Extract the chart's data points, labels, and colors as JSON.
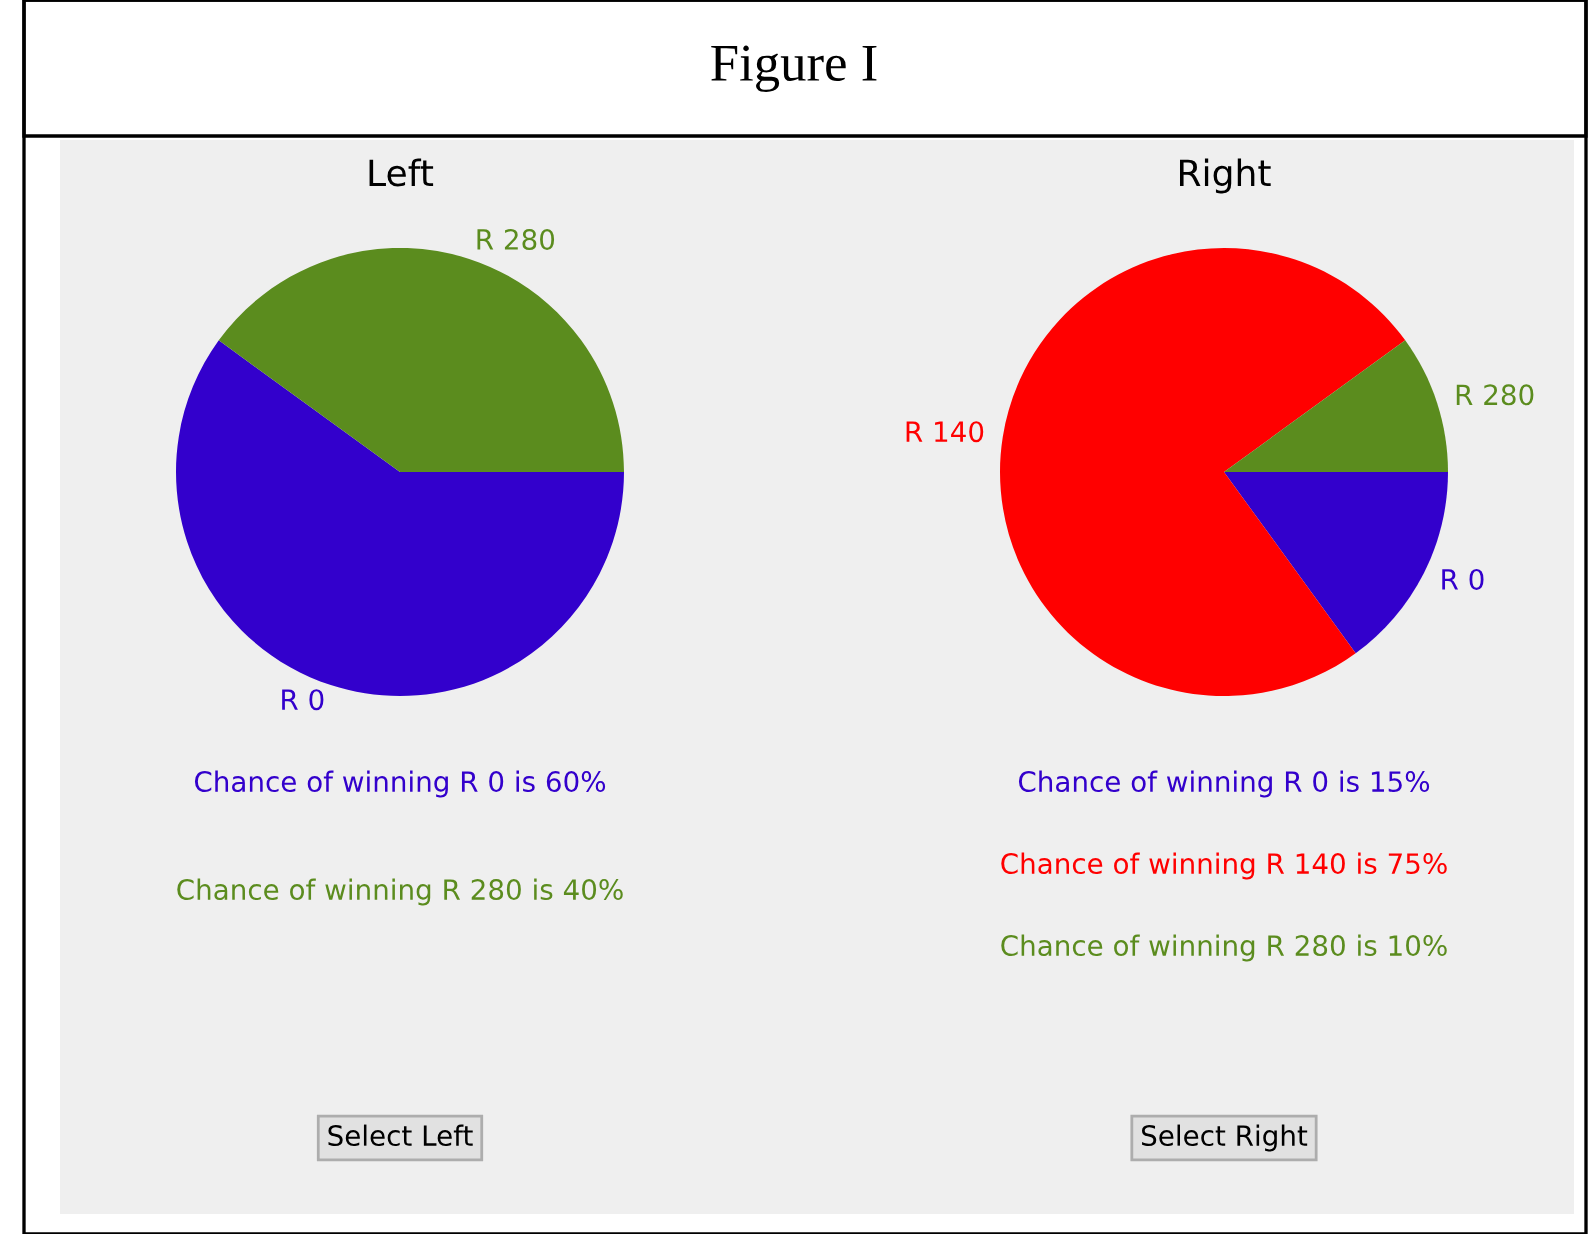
{
  "chart_data": [
    {
      "type": "pie",
      "title": "Left",
      "categories": [
        "R 0",
        "R 280"
      ],
      "values": [
        60,
        40
      ],
      "colors": [
        "#3300cc",
        "#5b8c1e"
      ],
      "annotations": [
        "Chance of winning R 0 is 60%",
        "Chance of winning R 280 is 40%",
        "Select Left",
        "Figure I"
      ]
    },
    {
      "type": "pie",
      "title": "Right",
      "categories": [
        "R 0",
        "R 140",
        "R 280"
      ],
      "values": [
        15,
        75,
        10
      ],
      "colors": [
        "#3300cc",
        "#ff0000",
        "#5b8c1e"
      ],
      "annotations": [
        "Chance of winning R 0 is 15%",
        "Chance of winning R 140 is 75%",
        "Chance of winning R 280 is 10%",
        "Select Right"
      ]
    }
  ]
}
